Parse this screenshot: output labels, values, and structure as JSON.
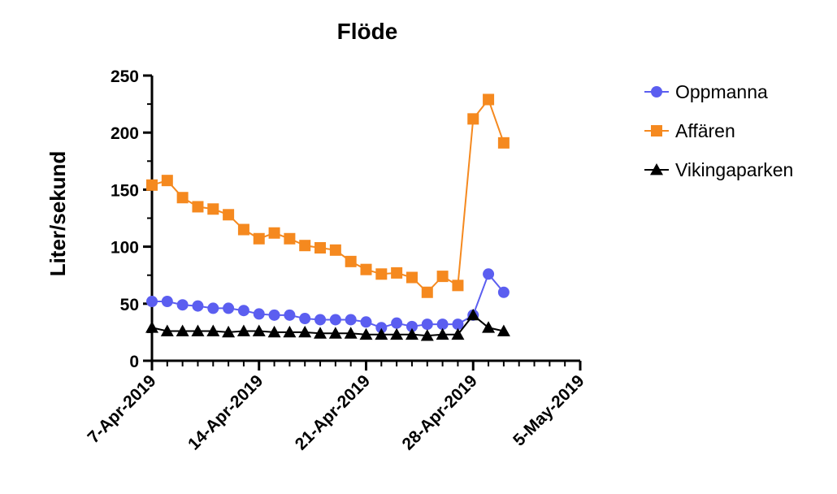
{
  "chart_data": {
    "type": "line",
    "title": "Flöde",
    "xlabel": "",
    "ylabel": "Liter/sekund",
    "x_range": [
      "2019-04-07",
      "2019-05-05"
    ],
    "x_tick_labels": [
      "7-Apr-2019",
      "14-Apr-2019",
      "21-Apr-2019",
      "28-Apr-2019",
      "5-May-2019"
    ],
    "ylim": [
      0,
      250
    ],
    "y_ticks": [
      "0",
      "50",
      "100",
      "150",
      "200",
      "250"
    ],
    "grid": false,
    "legend_position": "right",
    "x": [
      "2019-04-07",
      "2019-04-08",
      "2019-04-09",
      "2019-04-10",
      "2019-04-11",
      "2019-04-12",
      "2019-04-13",
      "2019-04-14",
      "2019-04-15",
      "2019-04-16",
      "2019-04-17",
      "2019-04-18",
      "2019-04-19",
      "2019-04-20",
      "2019-04-21",
      "2019-04-22",
      "2019-04-23",
      "2019-04-24",
      "2019-04-25",
      "2019-04-26",
      "2019-04-27",
      "2019-04-28",
      "2019-04-29",
      "2019-04-30"
    ],
    "series": [
      {
        "name": "Oppmanna",
        "color": "#5b5ef0",
        "marker": "circle",
        "values": [
          52,
          52,
          49,
          48,
          46,
          46,
          44,
          41,
          40,
          40,
          37,
          36,
          36,
          36,
          34,
          29,
          33,
          30,
          32,
          32,
          32,
          40,
          76,
          60
        ]
      },
      {
        "name": "Affären",
        "color": "#f5891f",
        "marker": "square",
        "values": [
          154,
          158,
          143,
          135,
          133,
          128,
          115,
          107,
          112,
          107,
          101,
          99,
          97,
          87,
          80,
          76,
          77,
          73,
          60,
          74,
          66,
          212,
          229,
          191
        ]
      },
      {
        "name": "Vikingaparken",
        "color": "#000000",
        "marker": "triangle",
        "values": [
          29,
          26,
          26,
          26,
          26,
          25,
          26,
          26,
          25,
          25,
          25,
          24,
          24,
          24,
          23,
          23,
          23,
          23,
          22,
          23,
          23,
          40,
          29,
          26
        ]
      }
    ]
  }
}
